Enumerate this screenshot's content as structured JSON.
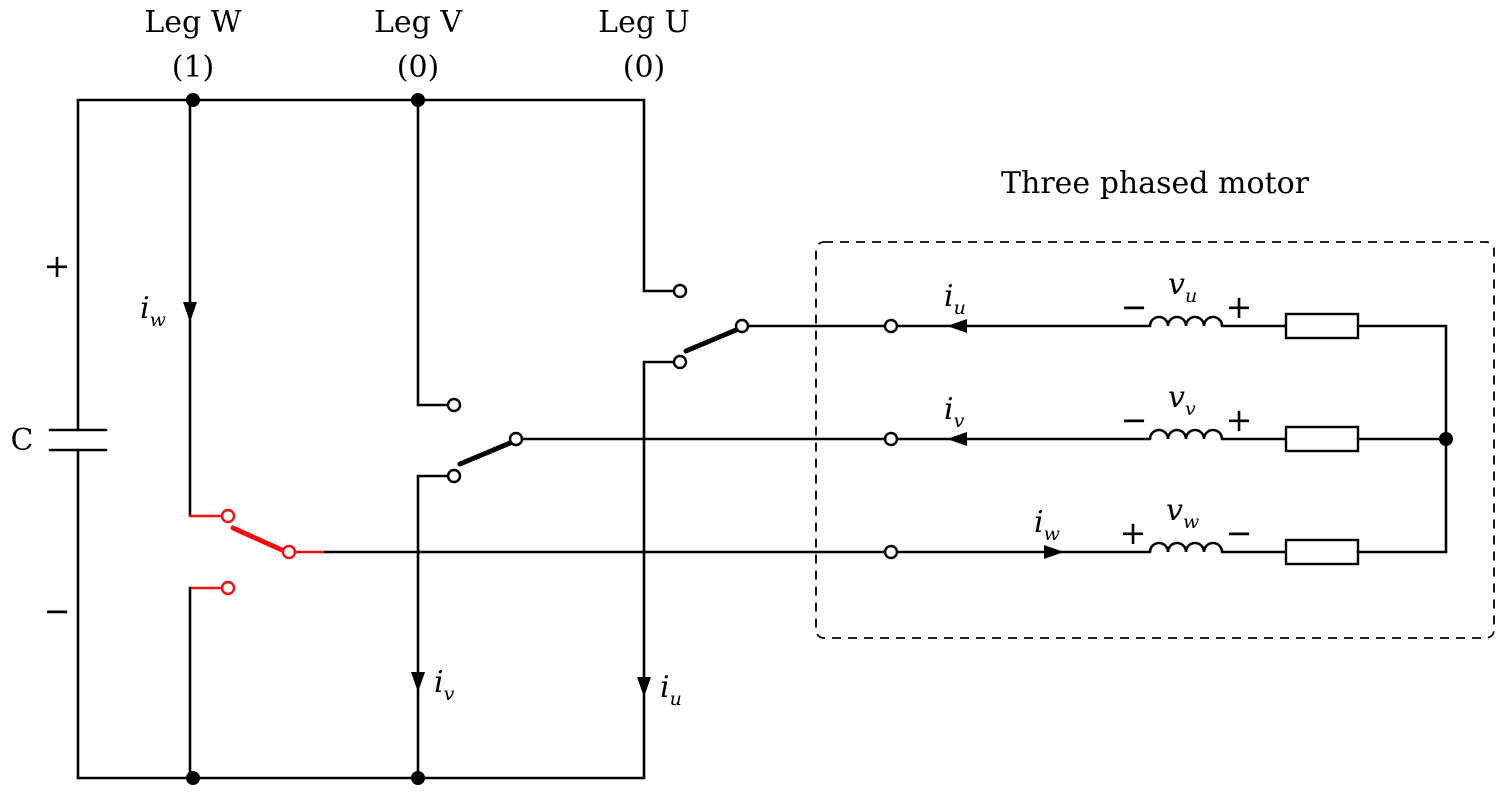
{
  "legs": [
    {
      "name": "Leg W",
      "state": "(1)"
    },
    {
      "name": "Leg V",
      "state": "(0)"
    },
    {
      "name": "Leg U",
      "state": "(0)"
    }
  ],
  "capacitor": {
    "label": "C",
    "plus": "+",
    "minus": "−"
  },
  "bridge_currents": {
    "leg_w": {
      "symbol": "i",
      "subscript": "w"
    },
    "leg_v": {
      "symbol": "i",
      "subscript": "v"
    },
    "leg_u": {
      "symbol": "i",
      "subscript": "u"
    }
  },
  "motor": {
    "title": "Three phased motor",
    "phases": [
      {
        "current": {
          "symbol": "i",
          "subscript": "u"
        },
        "voltage": {
          "symbol": "v",
          "subscript": "u"
        },
        "left_sign": "−",
        "right_sign": "+"
      },
      {
        "current": {
          "symbol": "i",
          "subscript": "v"
        },
        "voltage": {
          "symbol": "v",
          "subscript": "v"
        },
        "left_sign": "−",
        "right_sign": "+"
      },
      {
        "current": {
          "symbol": "i",
          "subscript": "w"
        },
        "voltage": {
          "symbol": "v",
          "subscript": "w"
        },
        "left_sign": "+",
        "right_sign": "−"
      }
    ]
  },
  "colors": {
    "wire": "#000000",
    "active_switch": "#ee1111",
    "background": "#ffffff"
  }
}
